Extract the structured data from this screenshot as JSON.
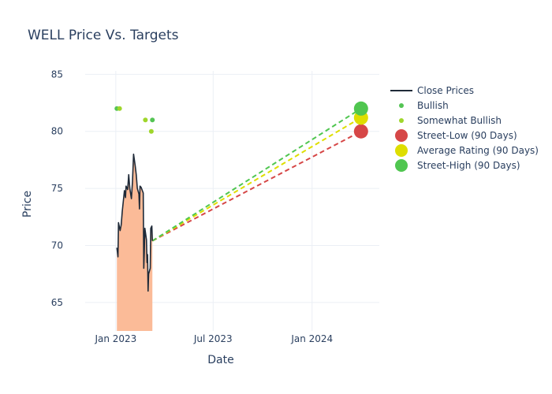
{
  "chart_data": {
    "type": "line",
    "title": "WELL Price Vs. Targets",
    "xlabel": "Date",
    "ylabel": "Price",
    "ylim": [
      62.5,
      85.3
    ],
    "xlim": [
      "2022-11-05",
      "2024-05-05"
    ],
    "yticks": [
      65,
      70,
      75,
      80,
      85
    ],
    "xticks": [
      {
        "date": "2023-01-01",
        "label": "Jan 2023"
      },
      {
        "date": "2023-07-01",
        "label": "Jul 2023"
      },
      {
        "date": "2024-01-01",
        "label": "Jan 2024"
      }
    ],
    "legend_position": "top-right",
    "close_prices": [
      {
        "date": "2023-01-03",
        "value": 69.8
      },
      {
        "date": "2023-01-05",
        "value": 69.0
      },
      {
        "date": "2023-01-06",
        "value": 72.0
      },
      {
        "date": "2023-01-09",
        "value": 71.3
      },
      {
        "date": "2023-01-11",
        "value": 71.8
      },
      {
        "date": "2023-01-13",
        "value": 73.0
      },
      {
        "date": "2023-01-17",
        "value": 74.8
      },
      {
        "date": "2023-01-19",
        "value": 74.2
      },
      {
        "date": "2023-01-20",
        "value": 75.2
      },
      {
        "date": "2023-01-23",
        "value": 74.9
      },
      {
        "date": "2023-01-25",
        "value": 76.2
      },
      {
        "date": "2023-01-27",
        "value": 75.0
      },
      {
        "date": "2023-01-30",
        "value": 74.1
      },
      {
        "date": "2023-02-01",
        "value": 75.6
      },
      {
        "date": "2023-02-03",
        "value": 78.0
      },
      {
        "date": "2023-02-06",
        "value": 77.0
      },
      {
        "date": "2023-02-08",
        "value": 76.2
      },
      {
        "date": "2023-02-10",
        "value": 75.0
      },
      {
        "date": "2023-02-13",
        "value": 74.5
      },
      {
        "date": "2023-02-14",
        "value": 73.2
      },
      {
        "date": "2023-02-15",
        "value": 75.2
      },
      {
        "date": "2023-02-17",
        "value": 75.1
      },
      {
        "date": "2023-02-21",
        "value": 74.6
      },
      {
        "date": "2023-02-22",
        "value": 68.0
      },
      {
        "date": "2023-02-23",
        "value": 69.5
      },
      {
        "date": "2023-02-24",
        "value": 71.5
      },
      {
        "date": "2023-02-27",
        "value": 70.5
      },
      {
        "date": "2023-02-28",
        "value": 68.5
      },
      {
        "date": "2023-03-01",
        "value": 69.2
      },
      {
        "date": "2023-03-02",
        "value": 66.0
      },
      {
        "date": "2023-03-03",
        "value": 67.5
      },
      {
        "date": "2023-03-06",
        "value": 68.0
      },
      {
        "date": "2023-03-07",
        "value": 71.5
      },
      {
        "date": "2023-03-09",
        "value": 71.7
      },
      {
        "date": "2023-03-10",
        "value": 70.4
      }
    ],
    "ratings": {
      "bullish": [
        {
          "date": "2023-01-03",
          "value": 82
        },
        {
          "date": "2023-03-10",
          "value": 81
        }
      ],
      "somewhat_bullish": [
        {
          "date": "2023-01-08",
          "value": 82
        },
        {
          "date": "2023-02-25",
          "value": 81
        },
        {
          "date": "2023-03-08",
          "value": 80
        }
      ]
    },
    "target_start": {
      "date": "2023-03-10",
      "value": 70.4
    },
    "target_end_date": "2024-04-01",
    "targets": {
      "street_low": 80,
      "average": 81.2,
      "street_high": 82
    },
    "legend": [
      {
        "key": "close",
        "label": "Close Prices"
      },
      {
        "key": "bullish",
        "label": "Bullish"
      },
      {
        "key": "somewhat_bullish",
        "label": "Somewhat Bullish"
      },
      {
        "key": "street_low",
        "label": "Street-Low (90 Days)"
      },
      {
        "key": "average",
        "label": "Average Rating (90 Days)"
      },
      {
        "key": "street_high",
        "label": "Street-High (90 Days)"
      }
    ],
    "colors": {
      "close_line": "#1f2a38",
      "fill": "#fbbb98",
      "bullish": "#54c454",
      "somewhat_bullish": "#9fd62b",
      "street_low": "#d64747",
      "average": "#dede00",
      "street_high": "#50c650",
      "grid": "#ebeff5",
      "text": "#2a3f5f"
    }
  }
}
